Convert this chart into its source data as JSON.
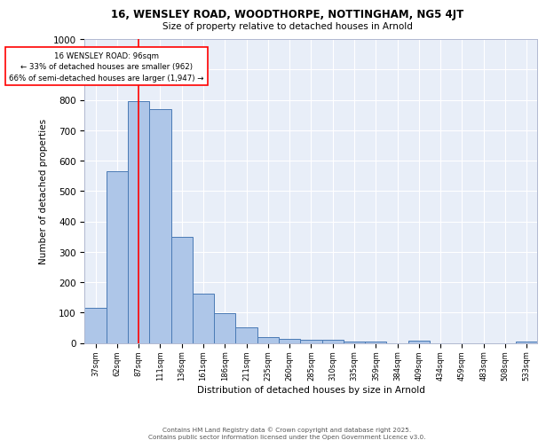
{
  "title1": "16, WENSLEY ROAD, WOODTHORPE, NOTTINGHAM, NG5 4JT",
  "title2": "Size of property relative to detached houses in Arnold",
  "xlabel": "Distribution of detached houses by size in Arnold",
  "ylabel": "Number of detached properties",
  "categories": [
    "37sqm",
    "62sqm",
    "87sqm",
    "111sqm",
    "136sqm",
    "161sqm",
    "186sqm",
    "211sqm",
    "235sqm",
    "260sqm",
    "285sqm",
    "310sqm",
    "335sqm",
    "359sqm",
    "384sqm",
    "409sqm",
    "434sqm",
    "459sqm",
    "483sqm",
    "508sqm",
    "533sqm"
  ],
  "values": [
    115,
    565,
    795,
    770,
    350,
    162,
    98,
    52,
    18,
    12,
    10,
    10,
    5,
    5,
    0,
    8,
    0,
    0,
    0,
    0,
    5
  ],
  "bar_color": "#aec6e8",
  "bar_edge_color": "#4a7ab5",
  "red_line_index": 2,
  "annotation_text": "16 WENSLEY ROAD: 96sqm\n← 33% of detached houses are smaller (962)\n66% of semi-detached houses are larger (1,947) →",
  "annotation_box_color": "white",
  "annotation_box_edge_color": "red",
  "bg_color": "#e8eef8",
  "grid_color": "white",
  "footer_line1": "Contains HM Land Registry data © Crown copyright and database right 2025.",
  "footer_line2": "Contains public sector information licensed under the Open Government Licence v3.0.",
  "ylim": [
    0,
    1000
  ],
  "yticks": [
    0,
    100,
    200,
    300,
    400,
    500,
    600,
    700,
    800,
    900,
    1000
  ]
}
